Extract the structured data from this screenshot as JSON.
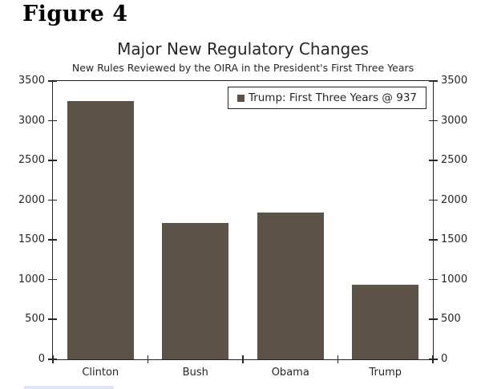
{
  "figure_label": "Figure 4",
  "chart_data": {
    "type": "bar",
    "title": "Major New Regulatory Changes",
    "subtitle": "New Rules Reviewed by the OIRA in the President's First Three Years",
    "categories": [
      "Clinton",
      "Bush",
      "Obama",
      "Trump"
    ],
    "values": [
      3250,
      1710,
      1850,
      937
    ],
    "ylim": [
      0,
      3500
    ],
    "yticks": [
      0,
      500,
      1000,
      1500,
      2000,
      2500,
      3000,
      3500
    ],
    "y_axis_sides": "both",
    "xlabel": "",
    "ylabel": "",
    "grid": false,
    "legend": {
      "label": "Trump: First Three Years @ 937",
      "position": "upper-right"
    },
    "colors": {
      "bar": "#5C5248",
      "axis": "#262626",
      "text": "#262626",
      "background": "#FFFFFF"
    },
    "bar_width_fraction": 0.7
  }
}
